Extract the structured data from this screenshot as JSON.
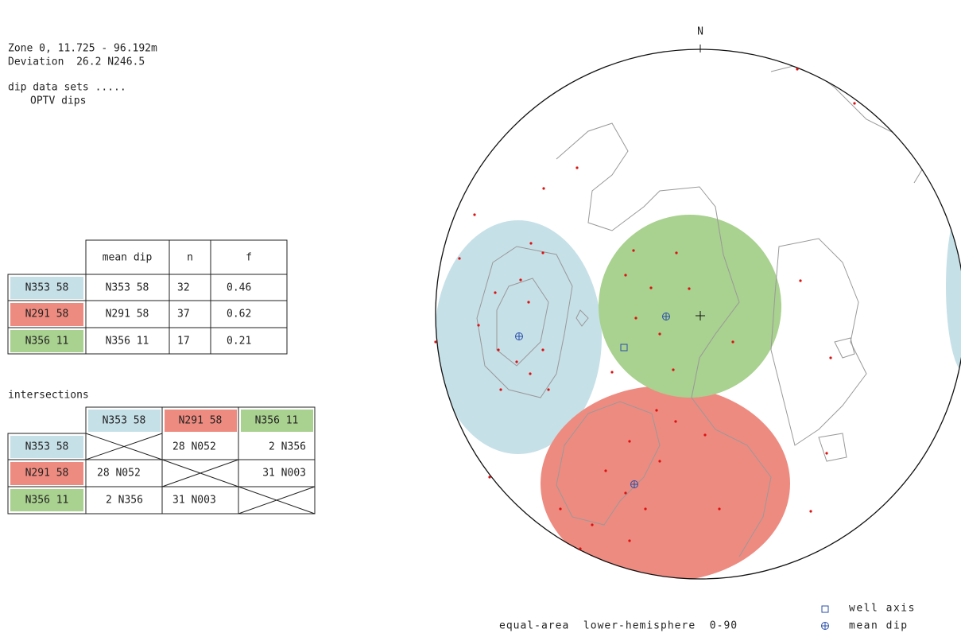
{
  "header": [
    "Zone 0, 11.725 - 96.192m",
    "Deviation  26.2 N246.5",
    "dip data sets .....",
    "OPTV dips"
  ],
  "sets_table": {
    "header": [
      "mean dip",
      "n",
      "f"
    ],
    "rows": [
      [
        "N353 58",
        "N353 58",
        "32",
        "0.46"
      ],
      [
        "N291 58",
        "N291 58",
        "37",
        "0.62"
      ],
      [
        "N356 11",
        "N356 11",
        "17",
        "0.21"
      ]
    ]
  },
  "intersections": {
    "title": "intersections",
    "header": [
      "N353 58",
      "N291 58",
      "N356 11"
    ],
    "rows": [
      [
        "N353 58",
        null,
        "28 N052",
        "2 N356"
      ],
      [
        "N291 58",
        "28 N052",
        null,
        "31 N003"
      ],
      [
        "N356 11",
        "2 N356",
        "31 N003",
        null
      ]
    ]
  },
  "stereonet": {
    "north": "N",
    "legend": [
      "well axis",
      "mean dip"
    ],
    "footer": "equal-area  lower-hemisphere  0-90"
  }
}
